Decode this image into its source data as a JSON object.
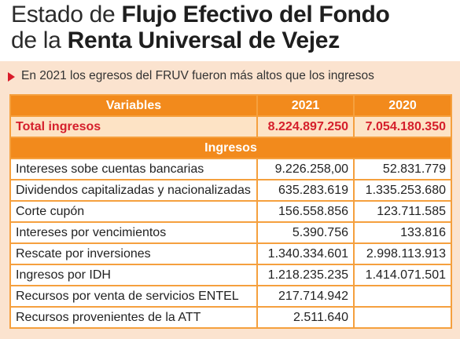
{
  "title": {
    "line1_regular": "Estado de ",
    "line1_bold": "Flujo Efectivo del Fondo",
    "line2_regular": "de la ",
    "line2_bold": "Renta Universal de Vejez"
  },
  "subtitle": "En 2021 los egresos del FRUV fueron más altos que los ingresos",
  "table": {
    "headers": [
      "Variables",
      "2021",
      "2020"
    ],
    "total": {
      "label": "Total ingresos",
      "v2021": "8.224.897.250",
      "v2020": "7.054.180.350"
    },
    "section_label": "Ingresos",
    "rows": [
      {
        "label": "Intereses sobe cuentas bancarias",
        "v2021": "9.226.258,00",
        "v2020": "52.831.779"
      },
      {
        "label": "Dividendos capitalizadas y nacionalizadas",
        "v2021": "635.283.619",
        "v2020": "1.335.253.680"
      },
      {
        "label": "Corte cupón",
        "v2021": "156.558.856",
        "v2020": "123.711.585"
      },
      {
        "label": "Intereses por vencimientos",
        "v2021": "5.390.756",
        "v2020": "133.816"
      },
      {
        "label": "Rescate por inversiones",
        "v2021": "1.340.334.601",
        "v2020": "2.998.113.913"
      },
      {
        "label": "Ingresos por IDH",
        "v2021": "1.218.235.235",
        "v2020": "1.414.071.501"
      },
      {
        "label": "Recursos por venta de servicios ENTEL",
        "v2021": "217.714.942",
        "v2020": ""
      },
      {
        "label": "Recursos provenientes de la ATT",
        "v2021": "2.511.640",
        "v2020": ""
      }
    ]
  },
  "colors": {
    "accent_orange": "#f28a1c",
    "panel_peach": "#fbe3cf",
    "total_red": "#d51f2b",
    "arrow_red": "#d91c2a"
  }
}
